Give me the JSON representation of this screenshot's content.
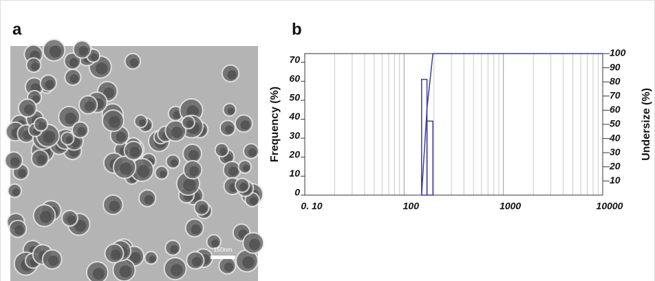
{
  "panel_a": {
    "label": "a",
    "scale_bar": "150nm"
  },
  "chart_data": {
    "type": "histogram",
    "label": "b",
    "bins": [
      150,
      170,
      195
    ],
    "values": [
      61,
      39
    ],
    "color": "#3c3c9c",
    "cumulative": {
      "x": [
        150,
        170,
        195,
        10000
      ],
      "values": [
        0,
        61,
        100,
        100
      ],
      "axis": "y2",
      "color": "#3c3c9c"
    },
    "ylabel": "Frequency (%)",
    "y2label": "Undersize (%)",
    "xlim": [
      10,
      10000
    ],
    "xticks": [
      {
        "value": 10,
        "label": "0. 10"
      },
      100,
      1000,
      10000
    ],
    "xscale": "log",
    "ylim": [
      0,
      74.6
    ],
    "yticks": [
      0,
      10,
      20,
      30,
      40,
      50,
      60,
      70
    ],
    "y2lim": [
      0,
      100
    ],
    "y2ticks": [
      10,
      20,
      30,
      40,
      50,
      60,
      70,
      80,
      90,
      100
    ],
    "grid": true
  }
}
